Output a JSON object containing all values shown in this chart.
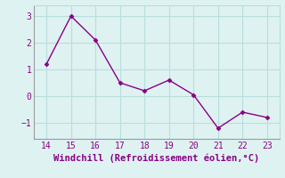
{
  "x": [
    14,
    15,
    16,
    17,
    18,
    19,
    20,
    21,
    22,
    23
  ],
  "y": [
    1.2,
    3.0,
    2.1,
    0.5,
    0.2,
    0.6,
    0.05,
    -1.2,
    -0.6,
    -0.8
  ],
  "line_color": "#880088",
  "marker": "D",
  "marker_size": 2.5,
  "bg_color": "#dff2f2",
  "grid_color": "#b8dede",
  "xlabel": "Windchill (Refroidissement éolien,°C)",
  "xlabel_fontsize": 7.5,
  "tick_fontsize": 7,
  "xlim": [
    13.5,
    23.5
  ],
  "ylim": [
    -1.6,
    3.4
  ],
  "yticks": [
    -1,
    0,
    1,
    2,
    3
  ],
  "xticks": [
    14,
    15,
    16,
    17,
    18,
    19,
    20,
    21,
    22,
    23
  ],
  "line_width": 1.0
}
